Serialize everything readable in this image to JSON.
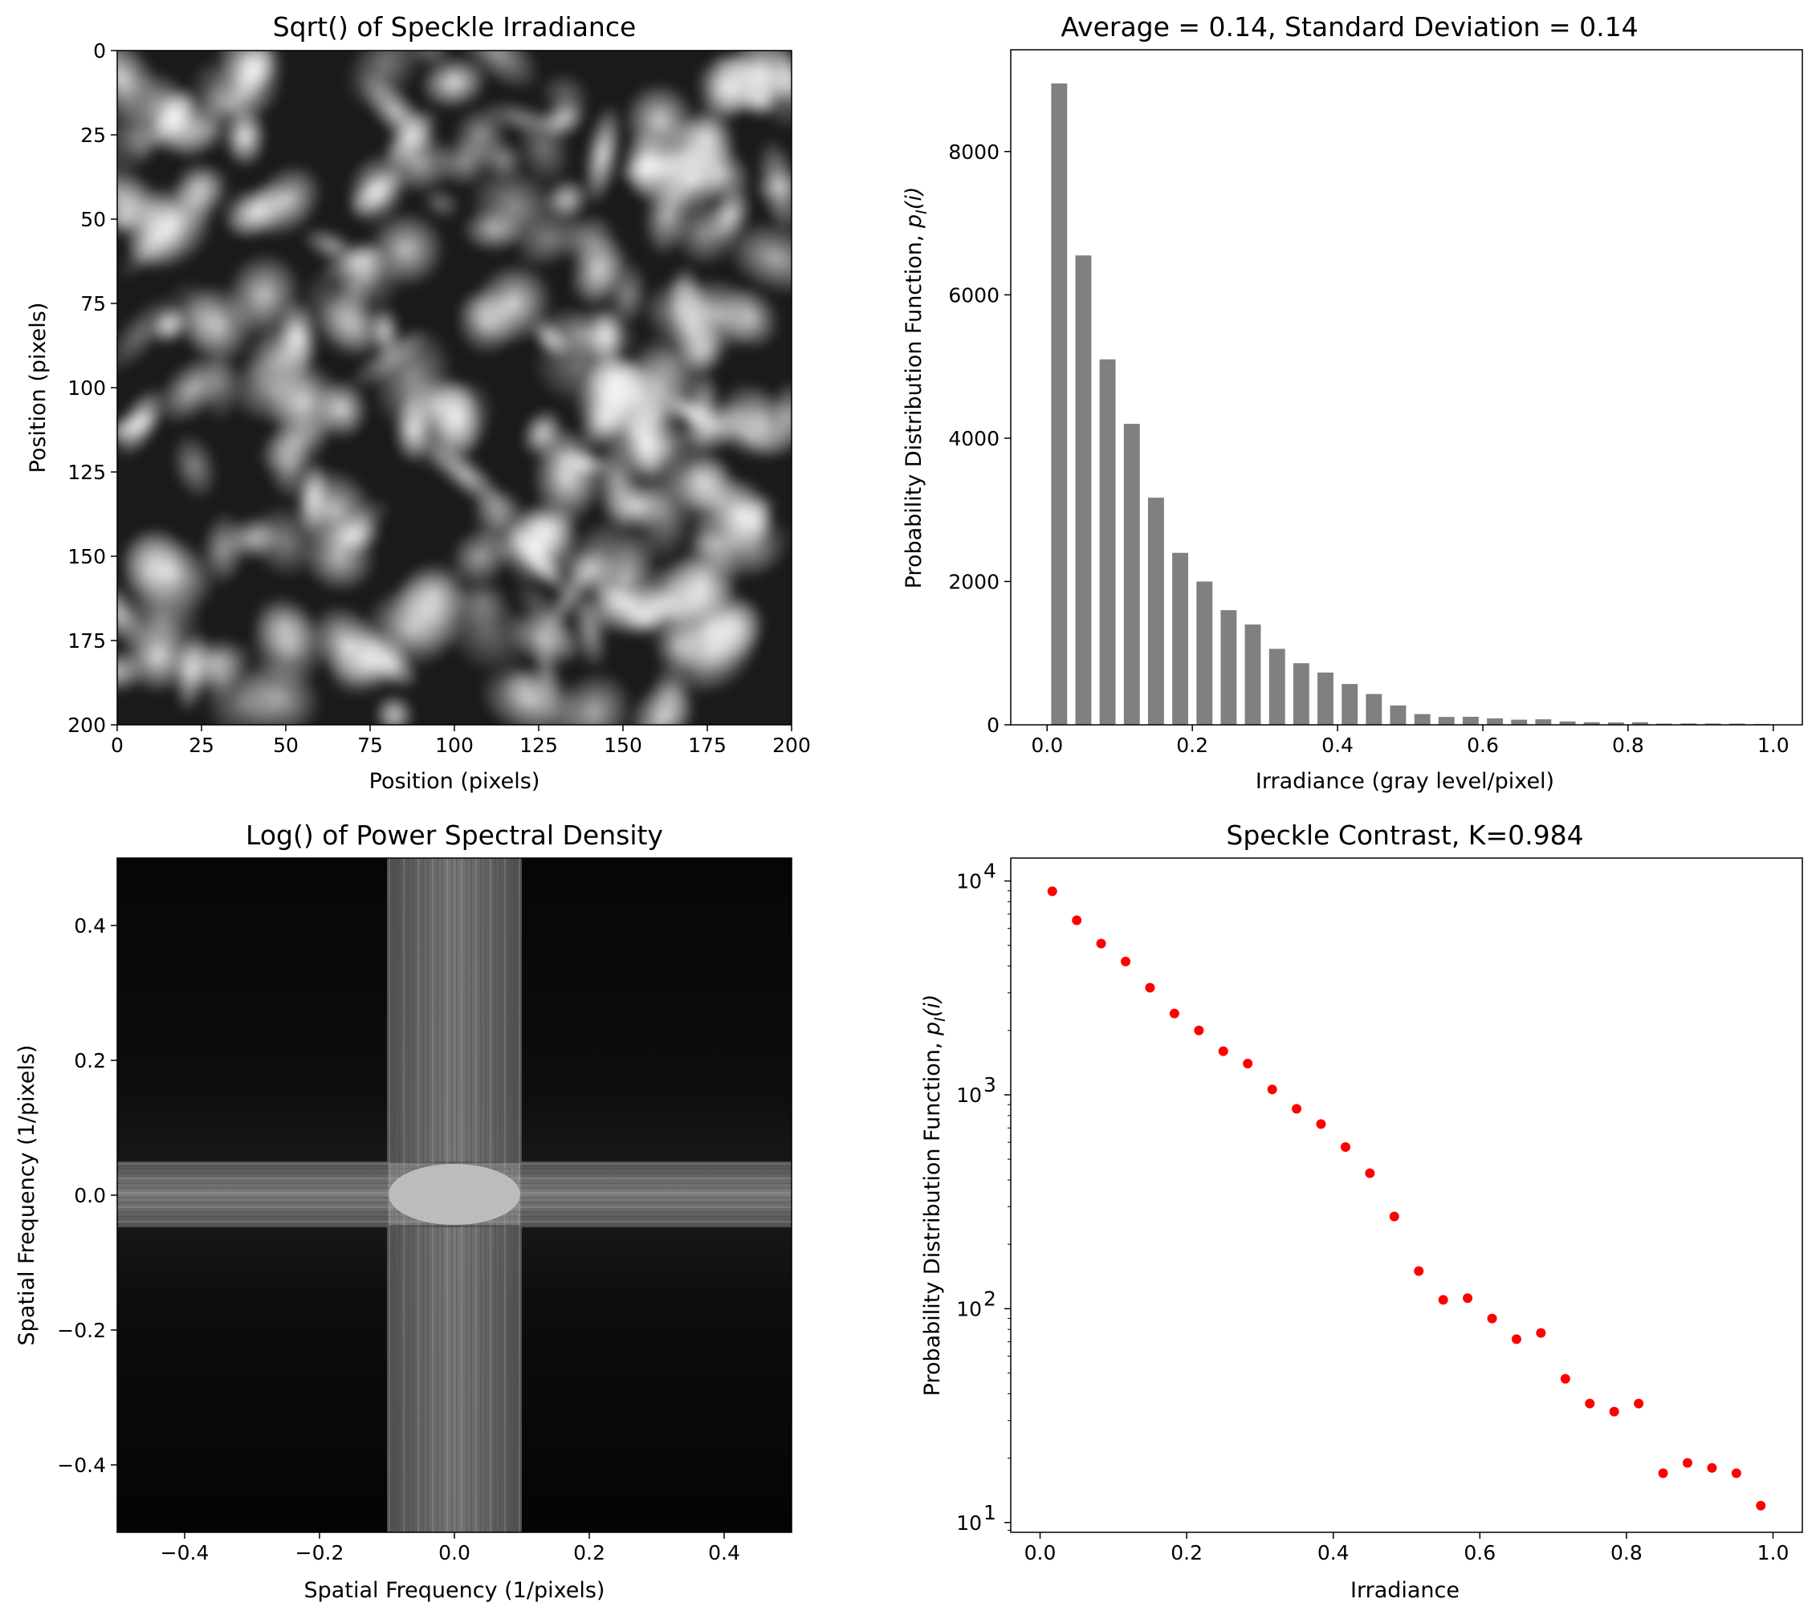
{
  "panels": {
    "speckle_image": {
      "title": "Sqrt() of Speckle Irradiance",
      "xlabel": "Position (pixels)",
      "ylabel": "Position (pixels)",
      "xticks": [
        "0",
        "25",
        "50",
        "75",
        "100",
        "125",
        "150",
        "175",
        "200"
      ],
      "yticks": [
        "0",
        "25",
        "50",
        "75",
        "100",
        "125",
        "150",
        "175",
        "200"
      ]
    },
    "psd_image": {
      "title": "Log() of Power Spectral Density",
      "xlabel": "Spatial Frequency (1/pixels)",
      "ylabel": "Spatial Frequency (1/pixels)",
      "xticks": [
        "−0.4",
        "−0.2",
        "0.0",
        "0.2",
        "0.4"
      ],
      "yticks": [
        "0.4",
        "0.2",
        "0.0",
        "−0.2",
        "−0.4"
      ]
    },
    "histogram": {
      "title": "Average = 0.14, Standard Deviation = 0.14",
      "xlabel": "Irradiance (gray level/pixel)",
      "ylabel_main": "Probability Distribution Function, ",
      "ylabel_var": "p",
      "ylabel_sub": "I",
      "ylabel_arg": "(i)",
      "xticks": [
        "0.0",
        "0.2",
        "0.4",
        "0.6",
        "0.8",
        "1.0"
      ],
      "yticks": [
        "0",
        "2000",
        "4000",
        "6000",
        "8000"
      ]
    },
    "log_scatter": {
      "title": "Speckle Contrast, K=0.984",
      "xlabel": "Irradiance",
      "ylabel_main": "Probability Distribution Function, ",
      "ylabel_var": "p",
      "ylabel_sub": "I",
      "ylabel_arg": "(i)",
      "xticks": [
        "0.0",
        "0.2",
        "0.4",
        "0.6",
        "0.8",
        "1.0"
      ],
      "ytick_base": "10",
      "ytick_exps": [
        "1",
        "2",
        "3",
        "4"
      ]
    }
  },
  "chart_data": [
    {
      "type": "heatmap",
      "title": "Sqrt() of Speckle Irradiance",
      "xlabel": "Position (pixels)",
      "ylabel": "Position (pixels)",
      "xlim": [
        0,
        200
      ],
      "ylim": [
        200,
        0
      ],
      "colormap": "gray"
    },
    {
      "type": "bar",
      "title": "Average = 0.14, Standard Deviation = 0.14",
      "xlabel": "Irradiance (gray level/pixel)",
      "ylabel": "Probability Distribution Function, pI(i)",
      "xlim": [
        -0.05,
        1.04
      ],
      "ylim": [
        0,
        9420
      ],
      "color": "#808080",
      "x": [
        0.0167,
        0.05,
        0.0833,
        0.1167,
        0.15,
        0.1833,
        0.2167,
        0.25,
        0.2833,
        0.3167,
        0.35,
        0.3833,
        0.4167,
        0.45,
        0.4833,
        0.5167,
        0.55,
        0.5833,
        0.6167,
        0.65,
        0.6833,
        0.7167,
        0.75,
        0.7833,
        0.8167,
        0.85,
        0.8833,
        0.9167,
        0.95,
        0.9833
      ],
      "values": [
        8950,
        6550,
        5100,
        4200,
        3170,
        2400,
        2000,
        1600,
        1400,
        1060,
        860,
        730,
        570,
        430,
        270,
        150,
        110,
        112,
        90,
        72,
        77,
        47,
        36,
        33,
        36,
        17,
        19,
        18,
        17,
        12
      ]
    },
    {
      "type": "heatmap",
      "title": "Log() of Power Spectral Density",
      "xlabel": "Spatial Frequency (1/pixels)",
      "ylabel": "Spatial Frequency (1/pixels)",
      "xlim": [
        -0.5,
        0.5
      ],
      "ylim": [
        -0.5,
        0.5
      ],
      "colormap": "gray"
    },
    {
      "type": "scatter",
      "title": "Speckle Contrast, K=0.984",
      "xlabel": "Irradiance",
      "ylabel": "Probability Distribution Function, pI(i)",
      "yscale": "log",
      "xlim": [
        -0.04,
        1.04
      ],
      "ylim": [
        9,
        12800
      ],
      "color": "#ff0000",
      "x": [
        0.0167,
        0.05,
        0.0833,
        0.1167,
        0.15,
        0.1833,
        0.2167,
        0.25,
        0.2833,
        0.3167,
        0.35,
        0.3833,
        0.4167,
        0.45,
        0.4833,
        0.5167,
        0.55,
        0.5833,
        0.6167,
        0.65,
        0.6833,
        0.7167,
        0.75,
        0.7833,
        0.8167,
        0.85,
        0.8833,
        0.9167,
        0.95,
        0.9833
      ],
      "values": [
        8950,
        6550,
        5100,
        4200,
        3170,
        2400,
        2000,
        1600,
        1400,
        1060,
        860,
        730,
        570,
        430,
        270,
        150,
        110,
        112,
        90,
        72,
        77,
        47,
        36,
        33,
        36,
        17,
        19,
        18,
        17,
        12
      ]
    }
  ]
}
